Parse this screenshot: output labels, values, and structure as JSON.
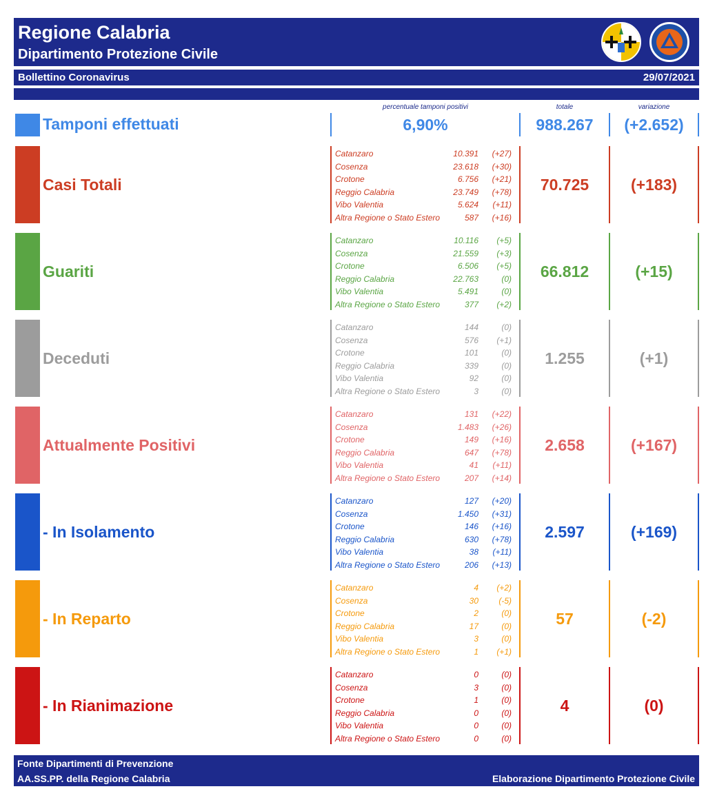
{
  "header": {
    "title": "Regione Calabria",
    "subtitle": "Dipartimento Protezione Civile",
    "bulletin": "Bollettino Coronavirus",
    "date": "29/07/2021"
  },
  "columns": {
    "pct_label": "percentuale tamponi positivi",
    "total_label": "totale",
    "change_label": "variazione"
  },
  "tamponi": {
    "label": "Tamponi effettuati",
    "pct": "6,90%",
    "total": "988.267",
    "change": "(+2.652)",
    "color": "#3f88e6"
  },
  "sections": [
    {
      "label": "Casi Totali",
      "total": "70.725",
      "change": "(+183)",
      "color": "#cc3d23",
      "rows": [
        {
          "prov": "Catanzaro",
          "num": "10.391",
          "var": "(+27)"
        },
        {
          "prov": "Cosenza",
          "num": "23.618",
          "var": "(+30)"
        },
        {
          "prov": "Crotone",
          "num": "6.756",
          "var": "(+21)"
        },
        {
          "prov": "Reggio Calabria",
          "num": "23.749",
          "var": "(+78)"
        },
        {
          "prov": "Vibo Valentia",
          "num": "5.624",
          "var": "(+11)"
        },
        {
          "prov": "Altra Regione o Stato Estero",
          "num": "587",
          "var": "(+16)"
        }
      ]
    },
    {
      "label": "Guariti",
      "total": "66.812",
      "change": "(+15)",
      "color": "#5aa544",
      "rows": [
        {
          "prov": "Catanzaro",
          "num": "10.116",
          "var": "(+5)"
        },
        {
          "prov": "Cosenza",
          "num": "21.559",
          "var": "(+3)"
        },
        {
          "prov": "Crotone",
          "num": "6.506",
          "var": "(+5)"
        },
        {
          "prov": "Reggio Calabria",
          "num": "22.763",
          "var": "(0)"
        },
        {
          "prov": "Vibo Valentia",
          "num": "5.491",
          "var": "(0)"
        },
        {
          "prov": "Altra Regione o Stato Estero",
          "num": "377",
          "var": "(+2)"
        }
      ]
    },
    {
      "label": "Deceduti",
      "total": "1.255",
      "change": "(+1)",
      "color": "#9c9c9c",
      "rows": [
        {
          "prov": "Catanzaro",
          "num": "144",
          "var": "(0)"
        },
        {
          "prov": "Cosenza",
          "num": "576",
          "var": "(+1)"
        },
        {
          "prov": "Crotone",
          "num": "101",
          "var": "(0)"
        },
        {
          "prov": "Reggio Calabria",
          "num": "339",
          "var": "(0)"
        },
        {
          "prov": "Vibo Valentia",
          "num": "92",
          "var": "(0)"
        },
        {
          "prov": "Altra Regione o Stato Estero",
          "num": "3",
          "var": "(0)"
        }
      ]
    },
    {
      "label": "Attualmente Positivi",
      "total": "2.658",
      "change": "(+167)",
      "color": "#e06466",
      "rows": [
        {
          "prov": "Catanzaro",
          "num": "131",
          "var": "(+22)"
        },
        {
          "prov": "Cosenza",
          "num": "1.483",
          "var": "(+26)"
        },
        {
          "prov": "Crotone",
          "num": "149",
          "var": "(+16)"
        },
        {
          "prov": "Reggio Calabria",
          "num": "647",
          "var": "(+78)"
        },
        {
          "prov": "Vibo Valentia",
          "num": "41",
          "var": "(+11)"
        },
        {
          "prov": "Altra Regione o Stato Estero",
          "num": "207",
          "var": "(+14)"
        }
      ]
    },
    {
      "label": "- In Isolamento",
      "total": "2.597",
      "change": "(+169)",
      "color": "#1a55c9",
      "rows": [
        {
          "prov": "Catanzaro",
          "num": "127",
          "var": "(+20)"
        },
        {
          "prov": "Cosenza",
          "num": "1.450",
          "var": "(+31)"
        },
        {
          "prov": "Crotone",
          "num": "146",
          "var": "(+16)"
        },
        {
          "prov": "Reggio Calabria",
          "num": "630",
          "var": "(+78)"
        },
        {
          "prov": "Vibo Valentia",
          "num": "38",
          "var": "(+11)"
        },
        {
          "prov": "Altra Regione o Stato Estero",
          "num": "206",
          "var": "(+13)"
        }
      ]
    },
    {
      "label": "- In Reparto",
      "total": "57",
      "change": "(-2)",
      "color": "#f59a0c",
      "rows": [
        {
          "prov": "Catanzaro",
          "num": "4",
          "var": "(+2)"
        },
        {
          "prov": "Cosenza",
          "num": "30",
          "var": "(-5)"
        },
        {
          "prov": "Crotone",
          "num": "2",
          "var": "(0)"
        },
        {
          "prov": "Reggio Calabria",
          "num": "17",
          "var": "(0)"
        },
        {
          "prov": "Vibo Valentia",
          "num": "3",
          "var": "(0)"
        },
        {
          "prov": "Altra Regione o Stato Estero",
          "num": "1",
          "var": "(+1)"
        }
      ]
    },
    {
      "label": "- In Rianimazione",
      "total": "4",
      "change": "(0)",
      "color": "#cc1414",
      "rows": [
        {
          "prov": "Catanzaro",
          "num": "0",
          "var": "(0)"
        },
        {
          "prov": "Cosenza",
          "num": "3",
          "var": "(0)"
        },
        {
          "prov": "Crotone",
          "num": "1",
          "var": "(0)"
        },
        {
          "prov": "Reggio Calabria",
          "num": "0",
          "var": "(0)"
        },
        {
          "prov": "Vibo Valentia",
          "num": "0",
          "var": "(0)"
        },
        {
          "prov": "Altra Regione o Stato Estero",
          "num": "0",
          "var": "(0)"
        }
      ]
    }
  ],
  "footer": {
    "source_line1": "Fonte Dipartimenti di Prevenzione",
    "source_line2": "AA.SS.PP.  della Regione Calabria",
    "credit": "Elaborazione Dipartimento Protezione Civile"
  }
}
